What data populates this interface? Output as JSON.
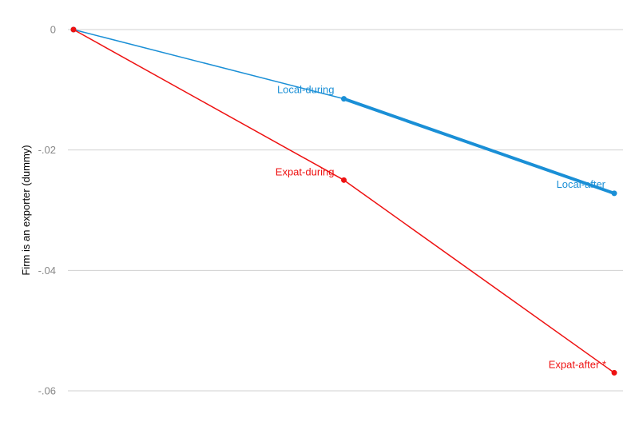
{
  "chart_data": {
    "type": "line",
    "title": "",
    "xlabel": "",
    "ylabel": "Firm is an exporter (dummy)",
    "ylim": [
      -0.06,
      0
    ],
    "yticks": [
      {
        "value": 0,
        "label": "0"
      },
      {
        "value": -0.02,
        "label": "-.02"
      },
      {
        "value": -0.04,
        "label": "-.04"
      },
      {
        "value": -0.06,
        "label": "-.06"
      }
    ],
    "grid": true,
    "legend": "none",
    "series": [
      {
        "key": "local",
        "color": "#1a8fd6",
        "points": [
          {
            "x": 0,
            "y": 0,
            "label": ""
          },
          {
            "x": 1,
            "y": -0.0115,
            "label": "Local-during"
          },
          {
            "x": 2,
            "y": -0.0272,
            "label": "Local-after"
          }
        ],
        "segment_widths": [
          1.5,
          4
        ]
      },
      {
        "key": "expat",
        "color": "#ee1111",
        "points": [
          {
            "x": 0,
            "y": 0,
            "label": ""
          },
          {
            "x": 1,
            "y": -0.025,
            "label": "Expat-during"
          },
          {
            "x": 2,
            "y": -0.057,
            "label": "Expat-after *"
          }
        ],
        "segment_widths": [
          1.5,
          1.5
        ]
      }
    ]
  }
}
